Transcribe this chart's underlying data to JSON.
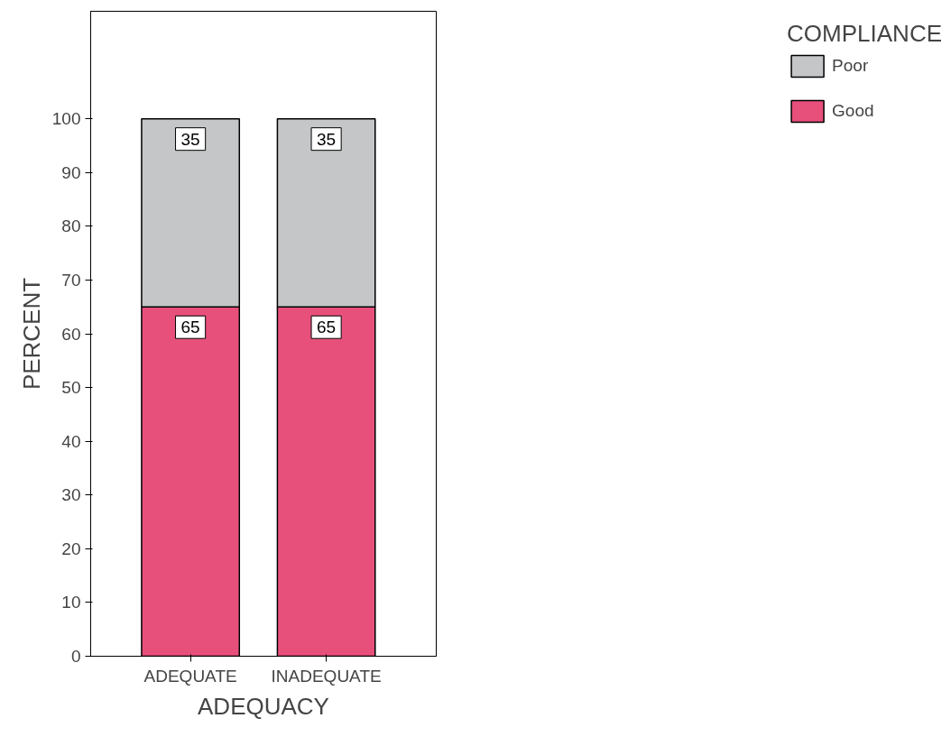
{
  "chart_data": {
    "type": "bar",
    "stacked": true,
    "xlabel": "ADEQUACY",
    "ylabel": "PERCENT",
    "legend_title": "COMPLIANCE",
    "categories": [
      "ADEQUATE",
      "INADEQUATE"
    ],
    "series": [
      {
        "name": "Good",
        "color": "#e8507c",
        "values": [
          65,
          65
        ]
      },
      {
        "name": "Poor",
        "color": "#c4c6c8",
        "values": [
          35,
          35
        ]
      }
    ],
    "ylim": [
      0,
      120
    ],
    "yticks": [
      0,
      10,
      20,
      30,
      40,
      50,
      60,
      70,
      80,
      90,
      100
    ],
    "data_labels": true,
    "grid": false,
    "legend": "right"
  }
}
